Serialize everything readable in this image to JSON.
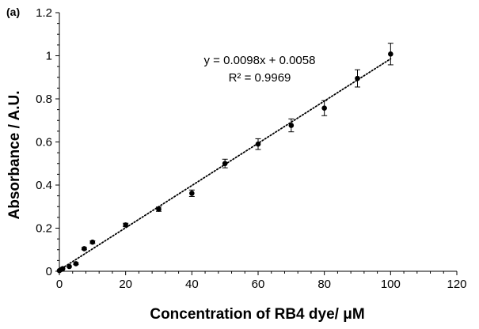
{
  "chart_data": {
    "type": "scatter",
    "panel_label": "(a)",
    "xlabel": "Concentration of RB4 dye/ μM",
    "ylabel": "Absorbance / A.U.",
    "xlim": [
      0,
      120
    ],
    "ylim": [
      0,
      1.2
    ],
    "x_ticks": [
      "0",
      "20",
      "40",
      "60",
      "80",
      "100",
      "120"
    ],
    "y_ticks": [
      "0",
      "0.2",
      "0.4",
      "0.6",
      "0.8",
      "1",
      "1.2"
    ],
    "grid": false,
    "points": [
      {
        "x": 0,
        "y": 0.003,
        "err": 0.002
      },
      {
        "x": 0.5,
        "y": 0.008,
        "err": 0.002
      },
      {
        "x": 1,
        "y": 0.012,
        "err": 0.002
      },
      {
        "x": 3,
        "y": 0.022,
        "err": 0.003
      },
      {
        "x": 5,
        "y": 0.035,
        "err": 0.004
      },
      {
        "x": 7.5,
        "y": 0.105,
        "err": 0.005
      },
      {
        "x": 10,
        "y": 0.135,
        "err": 0.006
      },
      {
        "x": 20,
        "y": 0.215,
        "err": 0.008
      },
      {
        "x": 30,
        "y": 0.288,
        "err": 0.01
      },
      {
        "x": 40,
        "y": 0.362,
        "err": 0.015
      },
      {
        "x": 50,
        "y": 0.5,
        "err": 0.02
      },
      {
        "x": 60,
        "y": 0.59,
        "err": 0.025
      },
      {
        "x": 70,
        "y": 0.677,
        "err": 0.03
      },
      {
        "x": 80,
        "y": 0.757,
        "err": 0.035
      },
      {
        "x": 90,
        "y": 0.895,
        "err": 0.04
      },
      {
        "x": 100,
        "y": 1.008,
        "err": 0.05
      }
    ],
    "trendline": {
      "slope": 0.0098,
      "intercept": 0.0058,
      "x_range": [
        0,
        100
      ],
      "style": "dotted"
    },
    "equation_text": "y = 0.0098x + 0.0058",
    "r2_text": "R² = 0.9969"
  }
}
